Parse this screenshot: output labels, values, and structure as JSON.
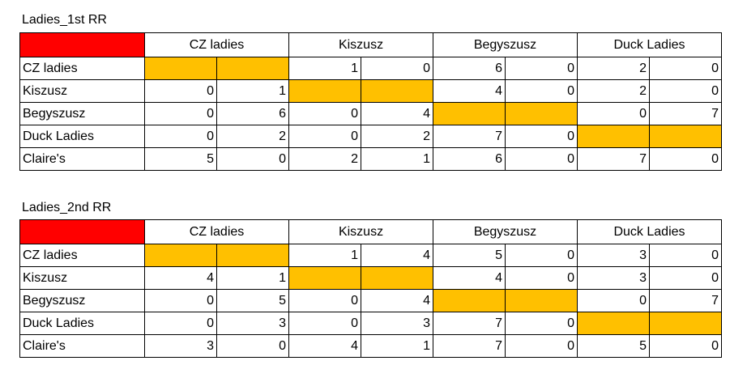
{
  "teams": [
    "CZ ladies",
    "Kiszusz",
    "Begyszusz",
    "Duck Ladies"
  ],
  "sections": [
    {
      "title": "Ladies_1st RR",
      "rows": [
        {
          "name": "CZ ladies",
          "scores": [
            null,
            null,
            1,
            0,
            6,
            0,
            2,
            0
          ]
        },
        {
          "name": "Kiszusz",
          "scores": [
            0,
            1,
            null,
            null,
            4,
            0,
            2,
            0
          ]
        },
        {
          "name": "Begyszusz",
          "scores": [
            0,
            6,
            0,
            4,
            null,
            null,
            0,
            7
          ]
        },
        {
          "name": "Duck Ladies",
          "scores": [
            0,
            2,
            0,
            2,
            7,
            0,
            null,
            null
          ]
        },
        {
          "name": "Claire's",
          "scores": [
            5,
            0,
            2,
            1,
            6,
            0,
            7,
            0
          ]
        }
      ]
    },
    {
      "title": "Ladies_2nd  RR",
      "rows": [
        {
          "name": "CZ ladies",
          "scores": [
            null,
            null,
            1,
            4,
            5,
            0,
            3,
            0
          ]
        },
        {
          "name": "Kiszusz",
          "scores": [
            4,
            1,
            null,
            null,
            4,
            0,
            3,
            0
          ]
        },
        {
          "name": "Begyszusz",
          "scores": [
            0,
            5,
            0,
            4,
            null,
            null,
            0,
            7
          ]
        },
        {
          "name": "Duck Ladies",
          "scores": [
            0,
            3,
            0,
            3,
            7,
            0,
            null,
            null
          ]
        },
        {
          "name": "Claire's",
          "scores": [
            3,
            0,
            4,
            1,
            7,
            0,
            5,
            0
          ]
        }
      ]
    }
  ],
  "colors": {
    "corner": "#ff0000",
    "blank": "#ffc000"
  }
}
